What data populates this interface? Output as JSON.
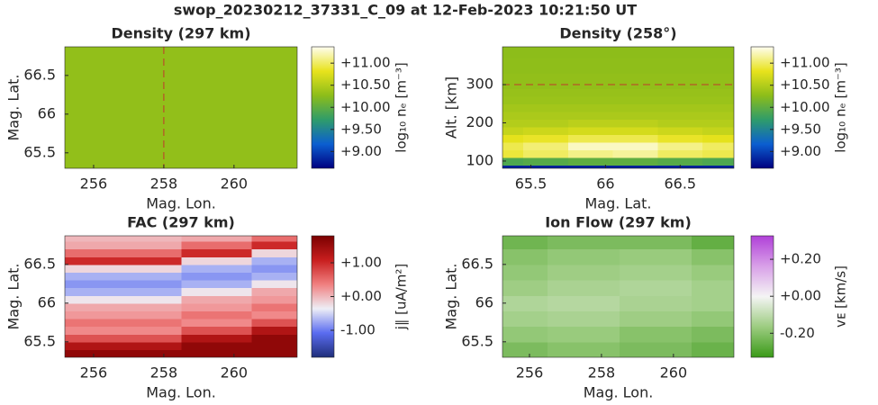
{
  "title": "swop_20230212_37331_C_09 at 12-Feb-2023 10:21:50 UT",
  "chart_data": [
    {
      "type": "heatmap",
      "title": "Density (297 km)",
      "xlabel": "Mag. Lon.",
      "ylabel": "Mag. Lat.",
      "x": [
        255.5,
        257.5,
        259.5,
        261.5
      ],
      "y": [
        65.4,
        66.0,
        66.6
      ],
      "values": [
        [
          10.3,
          10.3,
          10.3,
          10.3
        ],
        [
          10.3,
          10.3,
          10.3,
          10.3
        ],
        [
          10.3,
          10.3,
          10.3,
          10.3
        ]
      ],
      "xlim": [
        255.18,
        261.8
      ],
      "ylim": [
        65.3,
        66.87
      ],
      "xticks": [
        256,
        258,
        260
      ],
      "yticks": [
        65.5,
        66,
        66.5
      ],
      "colormap": [
        "#00007f",
        "#0b5fd0",
        "#2f9c6a",
        "#8dbd1a",
        "#e8e31c",
        "#fffef0"
      ],
      "clim": [
        8.62,
        11.37
      ],
      "cticks": [
        {
          "value": 9,
          "label": "+9.00"
        },
        {
          "value": 9.5,
          "label": "+9.50"
        },
        {
          "value": 10,
          "label": "+10.00"
        },
        {
          "value": 10.5,
          "label": "+10.50"
        },
        {
          "value": 11,
          "label": "+11.00"
        }
      ],
      "clabel": "log₁₀ nₑ [m⁻³]",
      "marker_line": {
        "x": 258,
        "color": "#c0392b"
      }
    },
    {
      "type": "heatmap",
      "title": "Density (258°)",
      "xlabel": "Mag. Lat.",
      "ylabel": "Alt. [km]",
      "x": [
        65.3,
        65.6,
        65.9,
        66.2,
        66.5,
        66.8
      ],
      "y": [
        80,
        100,
        120,
        140,
        160,
        180,
        200,
        220,
        240,
        260,
        280,
        300,
        320,
        340,
        360,
        380,
        400
      ],
      "values": [
        [
          8.8,
          8.8,
          8.8,
          8.8,
          8.8,
          8.8
        ],
        [
          9.9,
          9.95,
          10.0,
          10.0,
          9.95,
          9.9
        ],
        [
          10.9,
          11.0,
          11.1,
          11.15,
          11.0,
          10.95
        ],
        [
          10.95,
          11.05,
          11.25,
          11.25,
          11.1,
          11.0
        ],
        [
          10.8,
          10.85,
          10.95,
          10.95,
          10.85,
          10.8
        ],
        [
          10.6,
          10.65,
          10.7,
          10.7,
          10.65,
          10.6
        ],
        [
          10.5,
          10.5,
          10.55,
          10.55,
          10.5,
          10.5
        ],
        [
          10.45,
          10.45,
          10.45,
          10.45,
          10.45,
          10.45
        ],
        [
          10.4,
          10.4,
          10.4,
          10.4,
          10.4,
          10.4
        ],
        [
          10.35,
          10.35,
          10.35,
          10.35,
          10.35,
          10.35
        ],
        [
          10.33,
          10.33,
          10.33,
          10.33,
          10.33,
          10.33
        ],
        [
          10.3,
          10.3,
          10.3,
          10.3,
          10.3,
          10.3
        ],
        [
          10.3,
          10.3,
          10.3,
          10.3,
          10.3,
          10.3
        ],
        [
          10.28,
          10.28,
          10.28,
          10.28,
          10.28,
          10.28
        ],
        [
          10.28,
          10.28,
          10.28,
          10.28,
          10.28,
          10.28
        ],
        [
          10.27,
          10.27,
          10.27,
          10.27,
          10.27,
          10.27
        ],
        [
          10.27,
          10.27,
          10.27,
          10.27,
          10.27,
          10.27
        ]
      ],
      "xlim": [
        65.31,
        66.86
      ],
      "ylim": [
        81,
        399
      ],
      "xticks": [
        65.5,
        66,
        66.5
      ],
      "yticks": [
        100,
        200,
        300
      ],
      "colormap": [
        "#00007f",
        "#0b5fd0",
        "#2f9c6a",
        "#8dbd1a",
        "#e8e31c",
        "#fffef0"
      ],
      "clim": [
        8.62,
        11.37
      ],
      "cticks": [
        {
          "value": 9,
          "label": "+9.00"
        },
        {
          "value": 9.5,
          "label": "+9.50"
        },
        {
          "value": 10,
          "label": "+10.00"
        },
        {
          "value": 10.5,
          "label": "+10.50"
        },
        {
          "value": 11,
          "label": "+11.00"
        }
      ],
      "clabel": "log₁₀ nₑ [m⁻³]",
      "marker_line": {
        "y": 300,
        "color": "#c0392b"
      }
    },
    {
      "type": "heatmap",
      "title": "FAC (297 km)",
      "xlabel": "Mag. Lon.",
      "ylabel": "Mag. Lat.",
      "x": [
        255.5,
        257.5,
        259.5,
        261.5
      ],
      "y": [
        65.35,
        65.45,
        65.55,
        65.65,
        65.75,
        65.85,
        65.95,
        66.05,
        66.15,
        66.25,
        66.35,
        66.45,
        66.55,
        66.65,
        66.75,
        66.85
      ],
      "values": [
        [
          1.6,
          1.6,
          1.6,
          1.6
        ],
        [
          1.3,
          1.3,
          1.6,
          1.6
        ],
        [
          0.7,
          0.7,
          1.3,
          1.6
        ],
        [
          0.3,
          0.3,
          0.7,
          1.3
        ],
        [
          0.45,
          0.45,
          0.3,
          0.7
        ],
        [
          0.2,
          0.2,
          0.45,
          0.3
        ],
        [
          0.1,
          0.1,
          0.2,
          0.45
        ],
        [
          -0.3,
          -0.3,
          0.1,
          0.2
        ],
        [
          -0.7,
          -0.7,
          -0.3,
          0.1
        ],
        [
          -0.85,
          -0.85,
          -0.7,
          -0.3
        ],
        [
          -0.7,
          -0.7,
          -0.85,
          -0.7
        ],
        [
          -0.2,
          -0.2,
          -0.7,
          -0.85
        ],
        [
          1.0,
          1.0,
          -0.2,
          -0.7
        ],
        [
          0.5,
          0.5,
          1.0,
          -0.2
        ],
        [
          0.1,
          0.1,
          0.5,
          1.0
        ],
        [
          0.0,
          0.0,
          0.1,
          0.5
        ]
      ],
      "xlim": [
        255.18,
        261.8
      ],
      "ylim": [
        65.3,
        66.87
      ],
      "xticks": [
        256,
        258,
        260
      ],
      "yticks": [
        65.5,
        66,
        66.5
      ],
      "colormap": [
        "#1f2e7a",
        "#5a6cf0",
        "#eeeef6",
        "#f08080",
        "#c81e1e",
        "#7a0000"
      ],
      "clim": [
        -1.8,
        1.8
      ],
      "cticks": [
        {
          "value": -1,
          "label": "-1.00"
        },
        {
          "value": 0,
          "label": "+0.00"
        },
        {
          "value": 1,
          "label": "+1.00"
        }
      ],
      "clabel": "j∥ [uA/m²]"
    },
    {
      "type": "heatmap",
      "title": "Ion Flow (297 km)",
      "xlabel": "Mag. Lon.",
      "ylabel": "Mag. Lat.",
      "x": [
        255.5,
        257.5,
        259.5,
        261.5
      ],
      "y": [
        65.4,
        65.6,
        65.8,
        66.0,
        66.2,
        66.4,
        66.6,
        66.8
      ],
      "values": [
        [
          -0.22,
          -0.2,
          -0.22,
          -0.25
        ],
        [
          -0.18,
          -0.17,
          -0.2,
          -0.22
        ],
        [
          -0.15,
          -0.14,
          -0.16,
          -0.18
        ],
        [
          -0.13,
          -0.12,
          -0.14,
          -0.15
        ],
        [
          -0.16,
          -0.14,
          -0.13,
          -0.15
        ],
        [
          -0.18,
          -0.16,
          -0.15,
          -0.17
        ],
        [
          -0.2,
          -0.18,
          -0.17,
          -0.2
        ],
        [
          -0.24,
          -0.22,
          -0.22,
          -0.26
        ]
      ],
      "xlim": [
        255.25,
        261.68
      ],
      "ylim": [
        65.3,
        66.87
      ],
      "xticks": [
        256,
        258,
        260
      ],
      "yticks": [
        65.5,
        66,
        66.5
      ],
      "colormap": [
        "#3a9a18",
        "#9ccc80",
        "#f4f4f4",
        "#d8a0e8",
        "#b040d8"
      ],
      "clim": [
        -0.33,
        0.327
      ],
      "cticks": [
        {
          "value": -0.2,
          "label": "-0.20"
        },
        {
          "value": 0,
          "label": "+0.00"
        },
        {
          "value": 0.2,
          "label": "+0.20"
        }
      ],
      "clabel": "vᴇ [km/s]"
    }
  ]
}
